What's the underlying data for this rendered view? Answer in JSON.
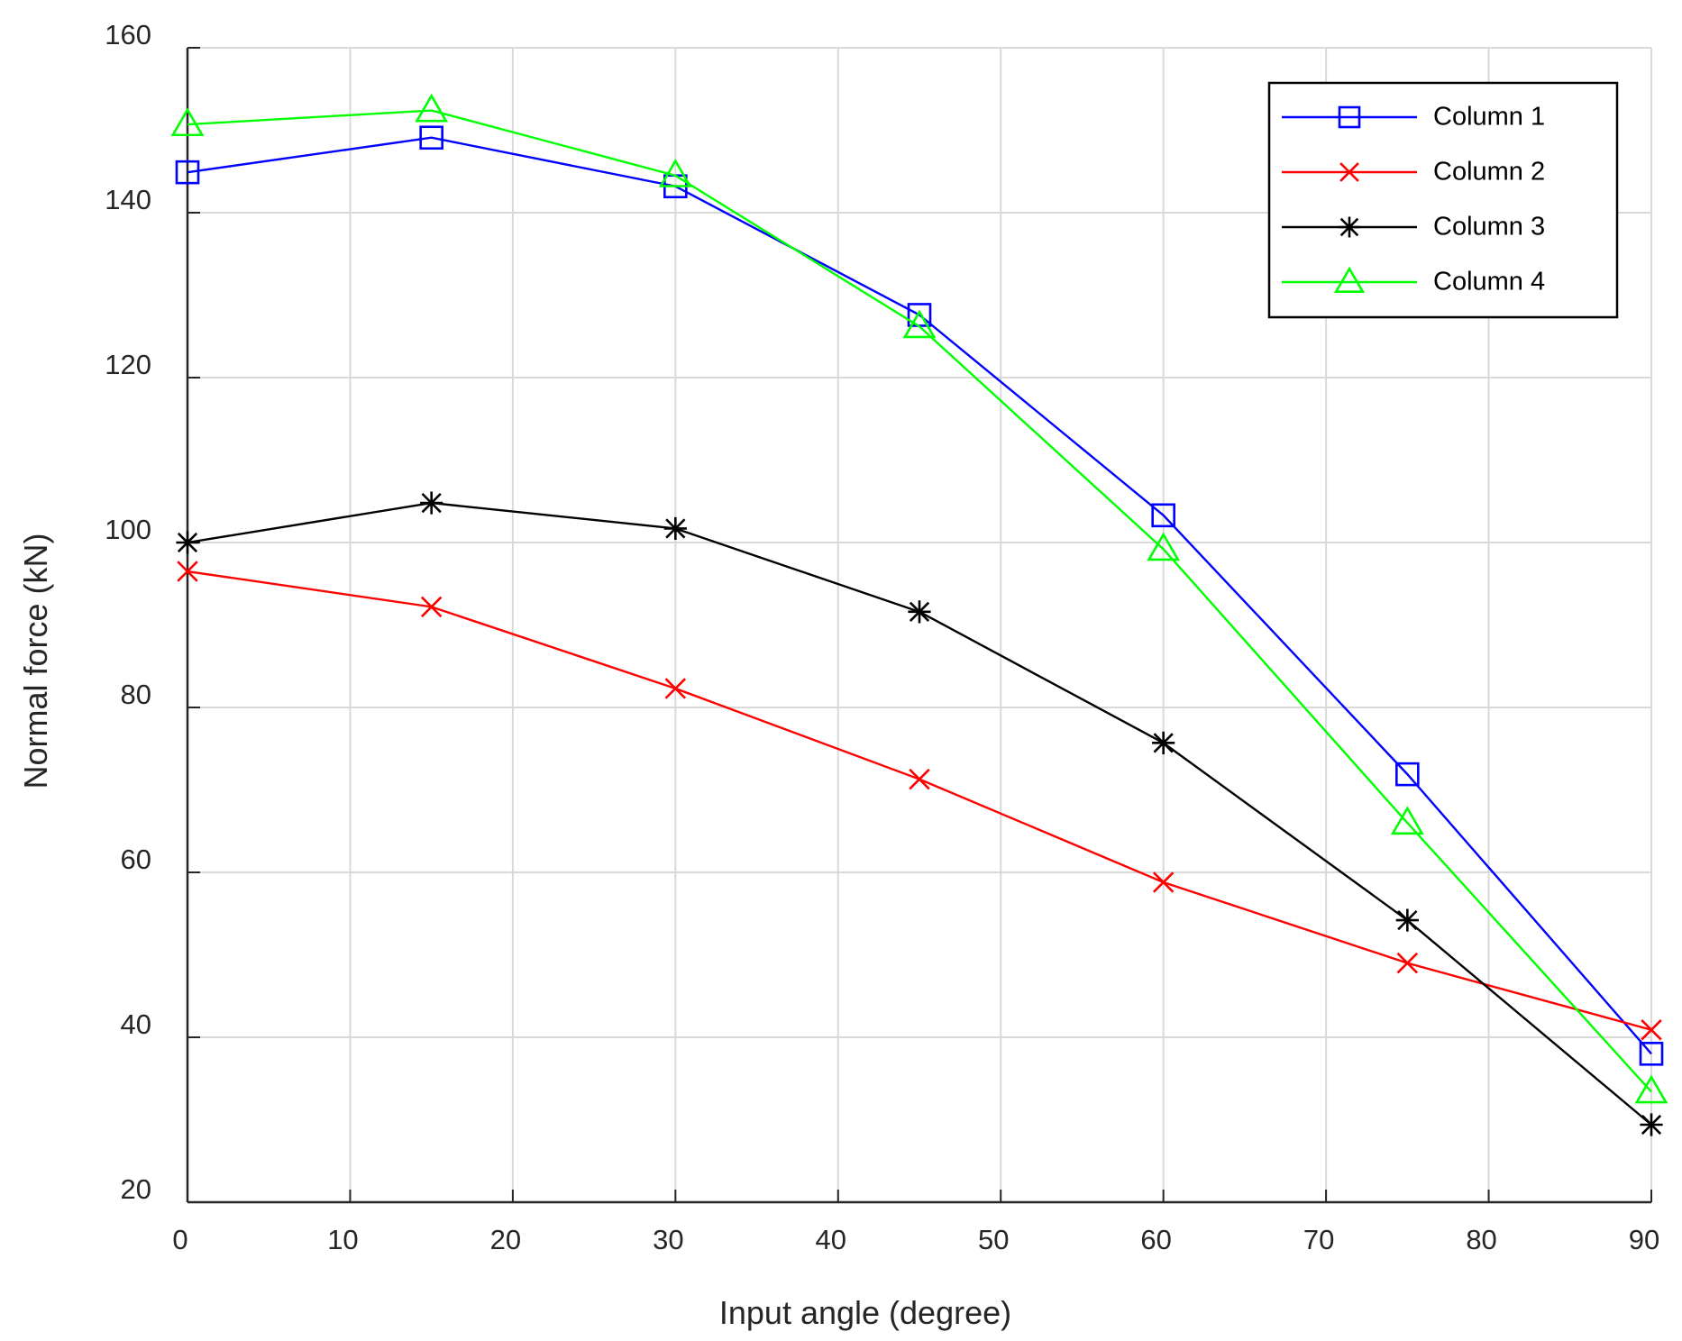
{
  "chart_data": {
    "type": "line",
    "title": "",
    "xlabel": "Input angle (degree)",
    "ylabel": "Normal force (kN)",
    "xlim": [
      0,
      90
    ],
    "ylim": [
      20,
      160
    ],
    "xticks": [
      0,
      10,
      20,
      30,
      40,
      50,
      60,
      70,
      80,
      90
    ],
    "yticks": [
      20,
      40,
      60,
      80,
      100,
      120,
      140,
      160
    ],
    "grid": true,
    "legend_position": "top-right",
    "x": [
      0,
      15,
      30,
      45,
      60,
      75,
      90
    ],
    "series": [
      {
        "name": "Column 1",
        "color": "#0000ff",
        "marker": "square",
        "values": [
          144.9,
          149.1,
          143.2,
          127.6,
          103.3,
          71.9,
          38.0
        ]
      },
      {
        "name": "Column 2",
        "color": "#ff0000",
        "marker": "x",
        "values": [
          96.5,
          92.2,
          82.3,
          71.3,
          58.8,
          49.0,
          40.9
        ]
      },
      {
        "name": "Column 3",
        "color": "#000000",
        "marker": "asterisk",
        "values": [
          100.0,
          104.8,
          101.7,
          91.6,
          75.7,
          54.2,
          29.4
        ]
      },
      {
        "name": "Column 4",
        "color": "#00ff00",
        "marker": "triangle",
        "values": [
          150.7,
          152.4,
          144.5,
          126.2,
          99.2,
          66.0,
          33.4
        ]
      }
    ]
  }
}
